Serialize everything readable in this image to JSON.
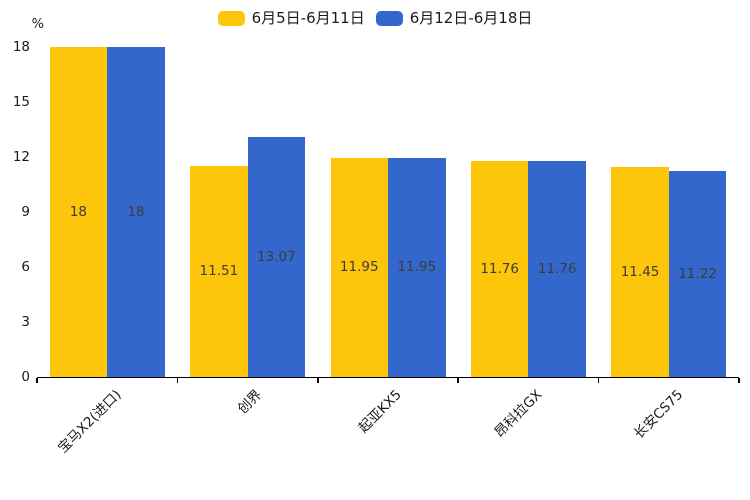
{
  "chart_data": {
    "type": "bar",
    "title": "",
    "ylabel_unit": "%",
    "categories": [
      "宝马X2(进口)",
      "创界",
      "起亚KX5",
      "昂科拉GX",
      "长安CS75"
    ],
    "series": [
      {
        "name": "6月5日-6月11日",
        "color": "#FDC60A",
        "values": [
          18,
          11.51,
          11.95,
          11.76,
          11.45
        ]
      },
      {
        "name": "6月12日-6月18日",
        "color": "#3367CB",
        "values": [
          18,
          13.07,
          11.95,
          11.76,
          11.22
        ]
      }
    ],
    "ylim": [
      0,
      18
    ],
    "yticks": [
      0,
      3,
      6,
      9,
      12,
      15,
      18
    ],
    "grid": false,
    "legend_position": "top-center",
    "bar_label_color": "#3C3C3C",
    "axis_color": "#000000",
    "background": "#FFFFFF"
  }
}
